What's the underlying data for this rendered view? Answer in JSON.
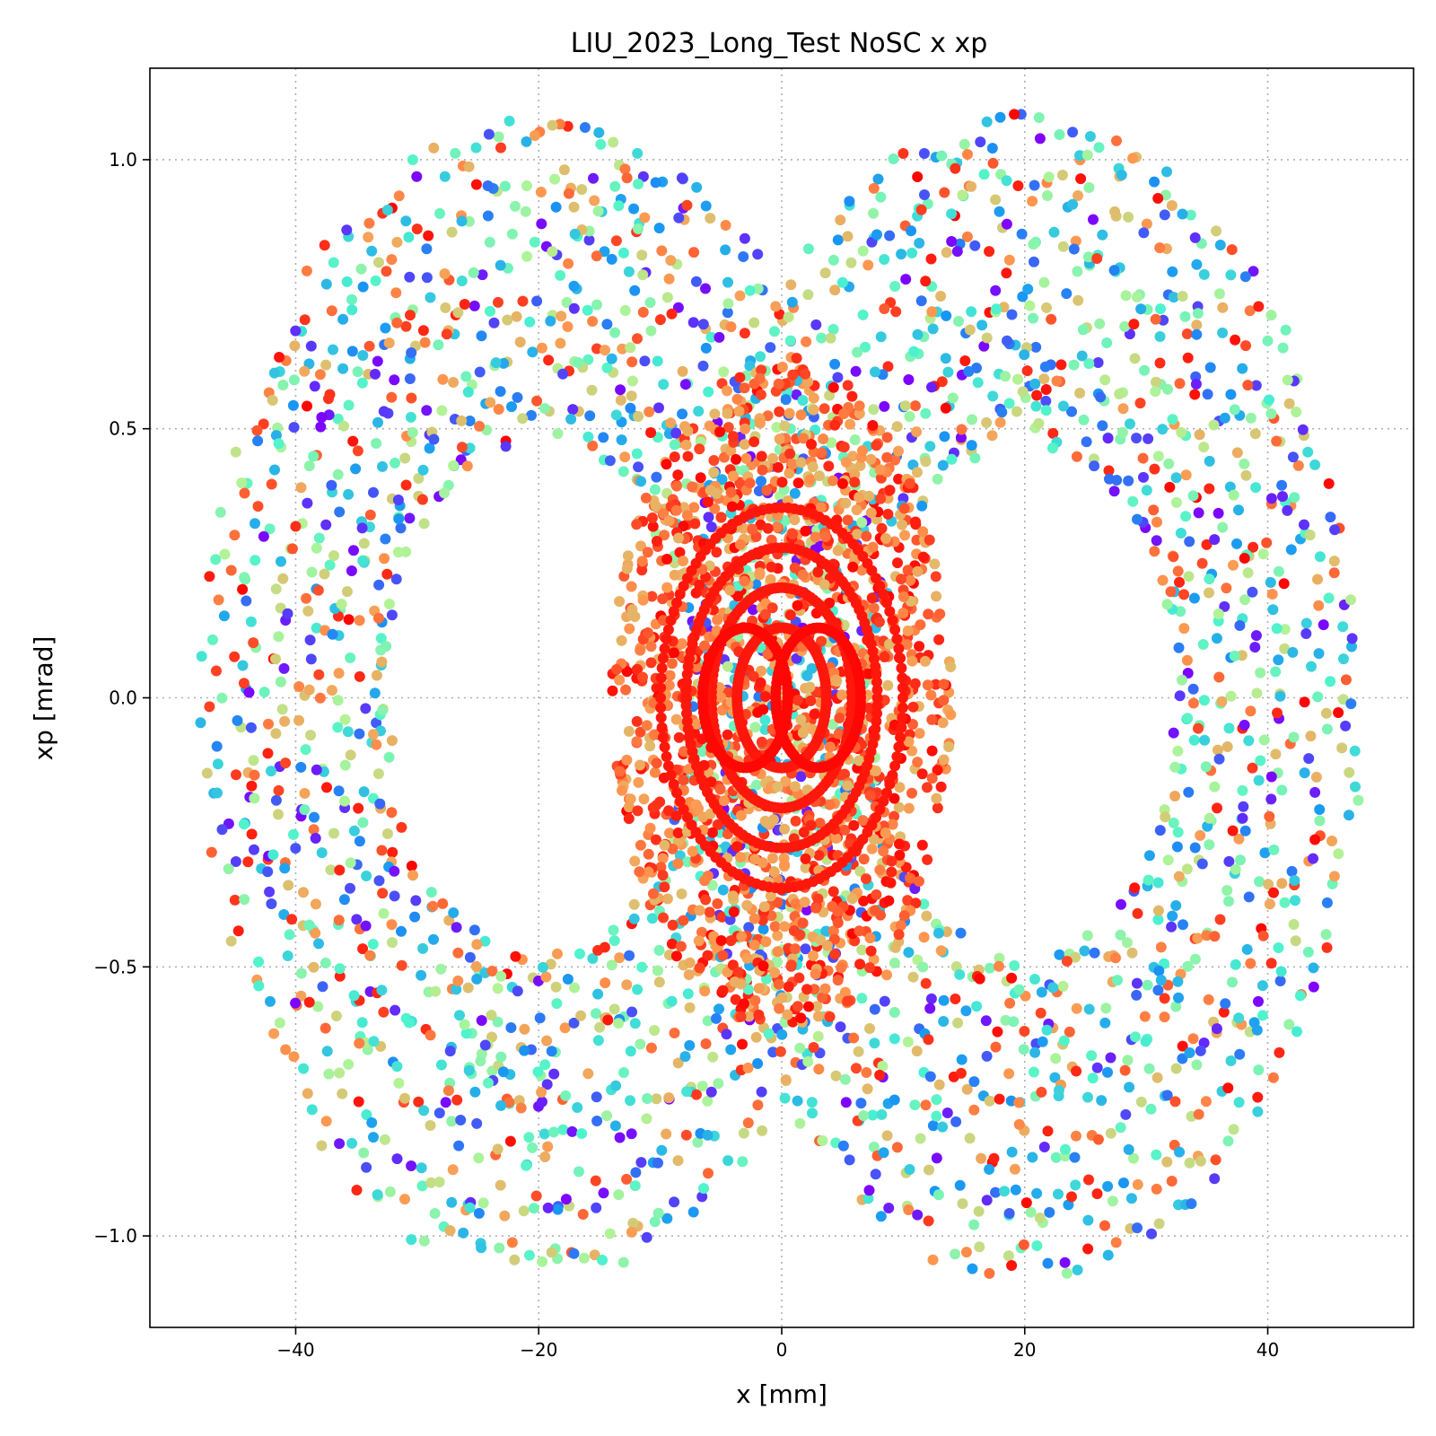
{
  "chart_data": {
    "type": "scatter",
    "title": "LIU_2023_Long_Test NoSC x xp",
    "xlabel": "x [mm]",
    "ylabel": "xp [mrad]",
    "xlim": [
      -52,
      52
    ],
    "ylim": [
      -1.17,
      1.17
    ],
    "xticks": [
      -40,
      -20,
      0,
      20,
      40
    ],
    "xtick_labels": [
      "−40",
      "−20",
      "0",
      "20",
      "40"
    ],
    "yticks": [
      -1.0,
      -0.5,
      0.0,
      0.5,
      1.0
    ],
    "ytick_labels": [
      "−1.0",
      "−0.5",
      "0.0",
      "0.5",
      "1.0"
    ],
    "grid": true,
    "colormap": "rainbow",
    "colormap_stops": [
      "#8000ff",
      "#1996f3",
      "#4df3ce",
      "#b2f396",
      "#ff964f",
      "#ff0000"
    ],
    "structure": {
      "lobes": [
        {
          "center_x": -20,
          "center_xp": 0.0,
          "x_half_width": 27,
          "xp_half_height": 1.05
        },
        {
          "center_x": 20,
          "center_xp": 0.0,
          "x_half_width": 27,
          "xp_half_height": 1.05
        }
      ],
      "core": {
        "center_x": 0,
        "center_xp": 0.0,
        "x_half_width": 14,
        "xp_half_height": 0.62
      },
      "inner_islands": [
        {
          "center_x": -3,
          "center_xp": 0.0,
          "x_half_width": 3.5,
          "xp_half_height": 0.13
        },
        {
          "center_x": 3,
          "center_xp": 0.0,
          "x_half_width": 3.5,
          "xp_half_height": 0.13
        }
      ]
    }
  }
}
